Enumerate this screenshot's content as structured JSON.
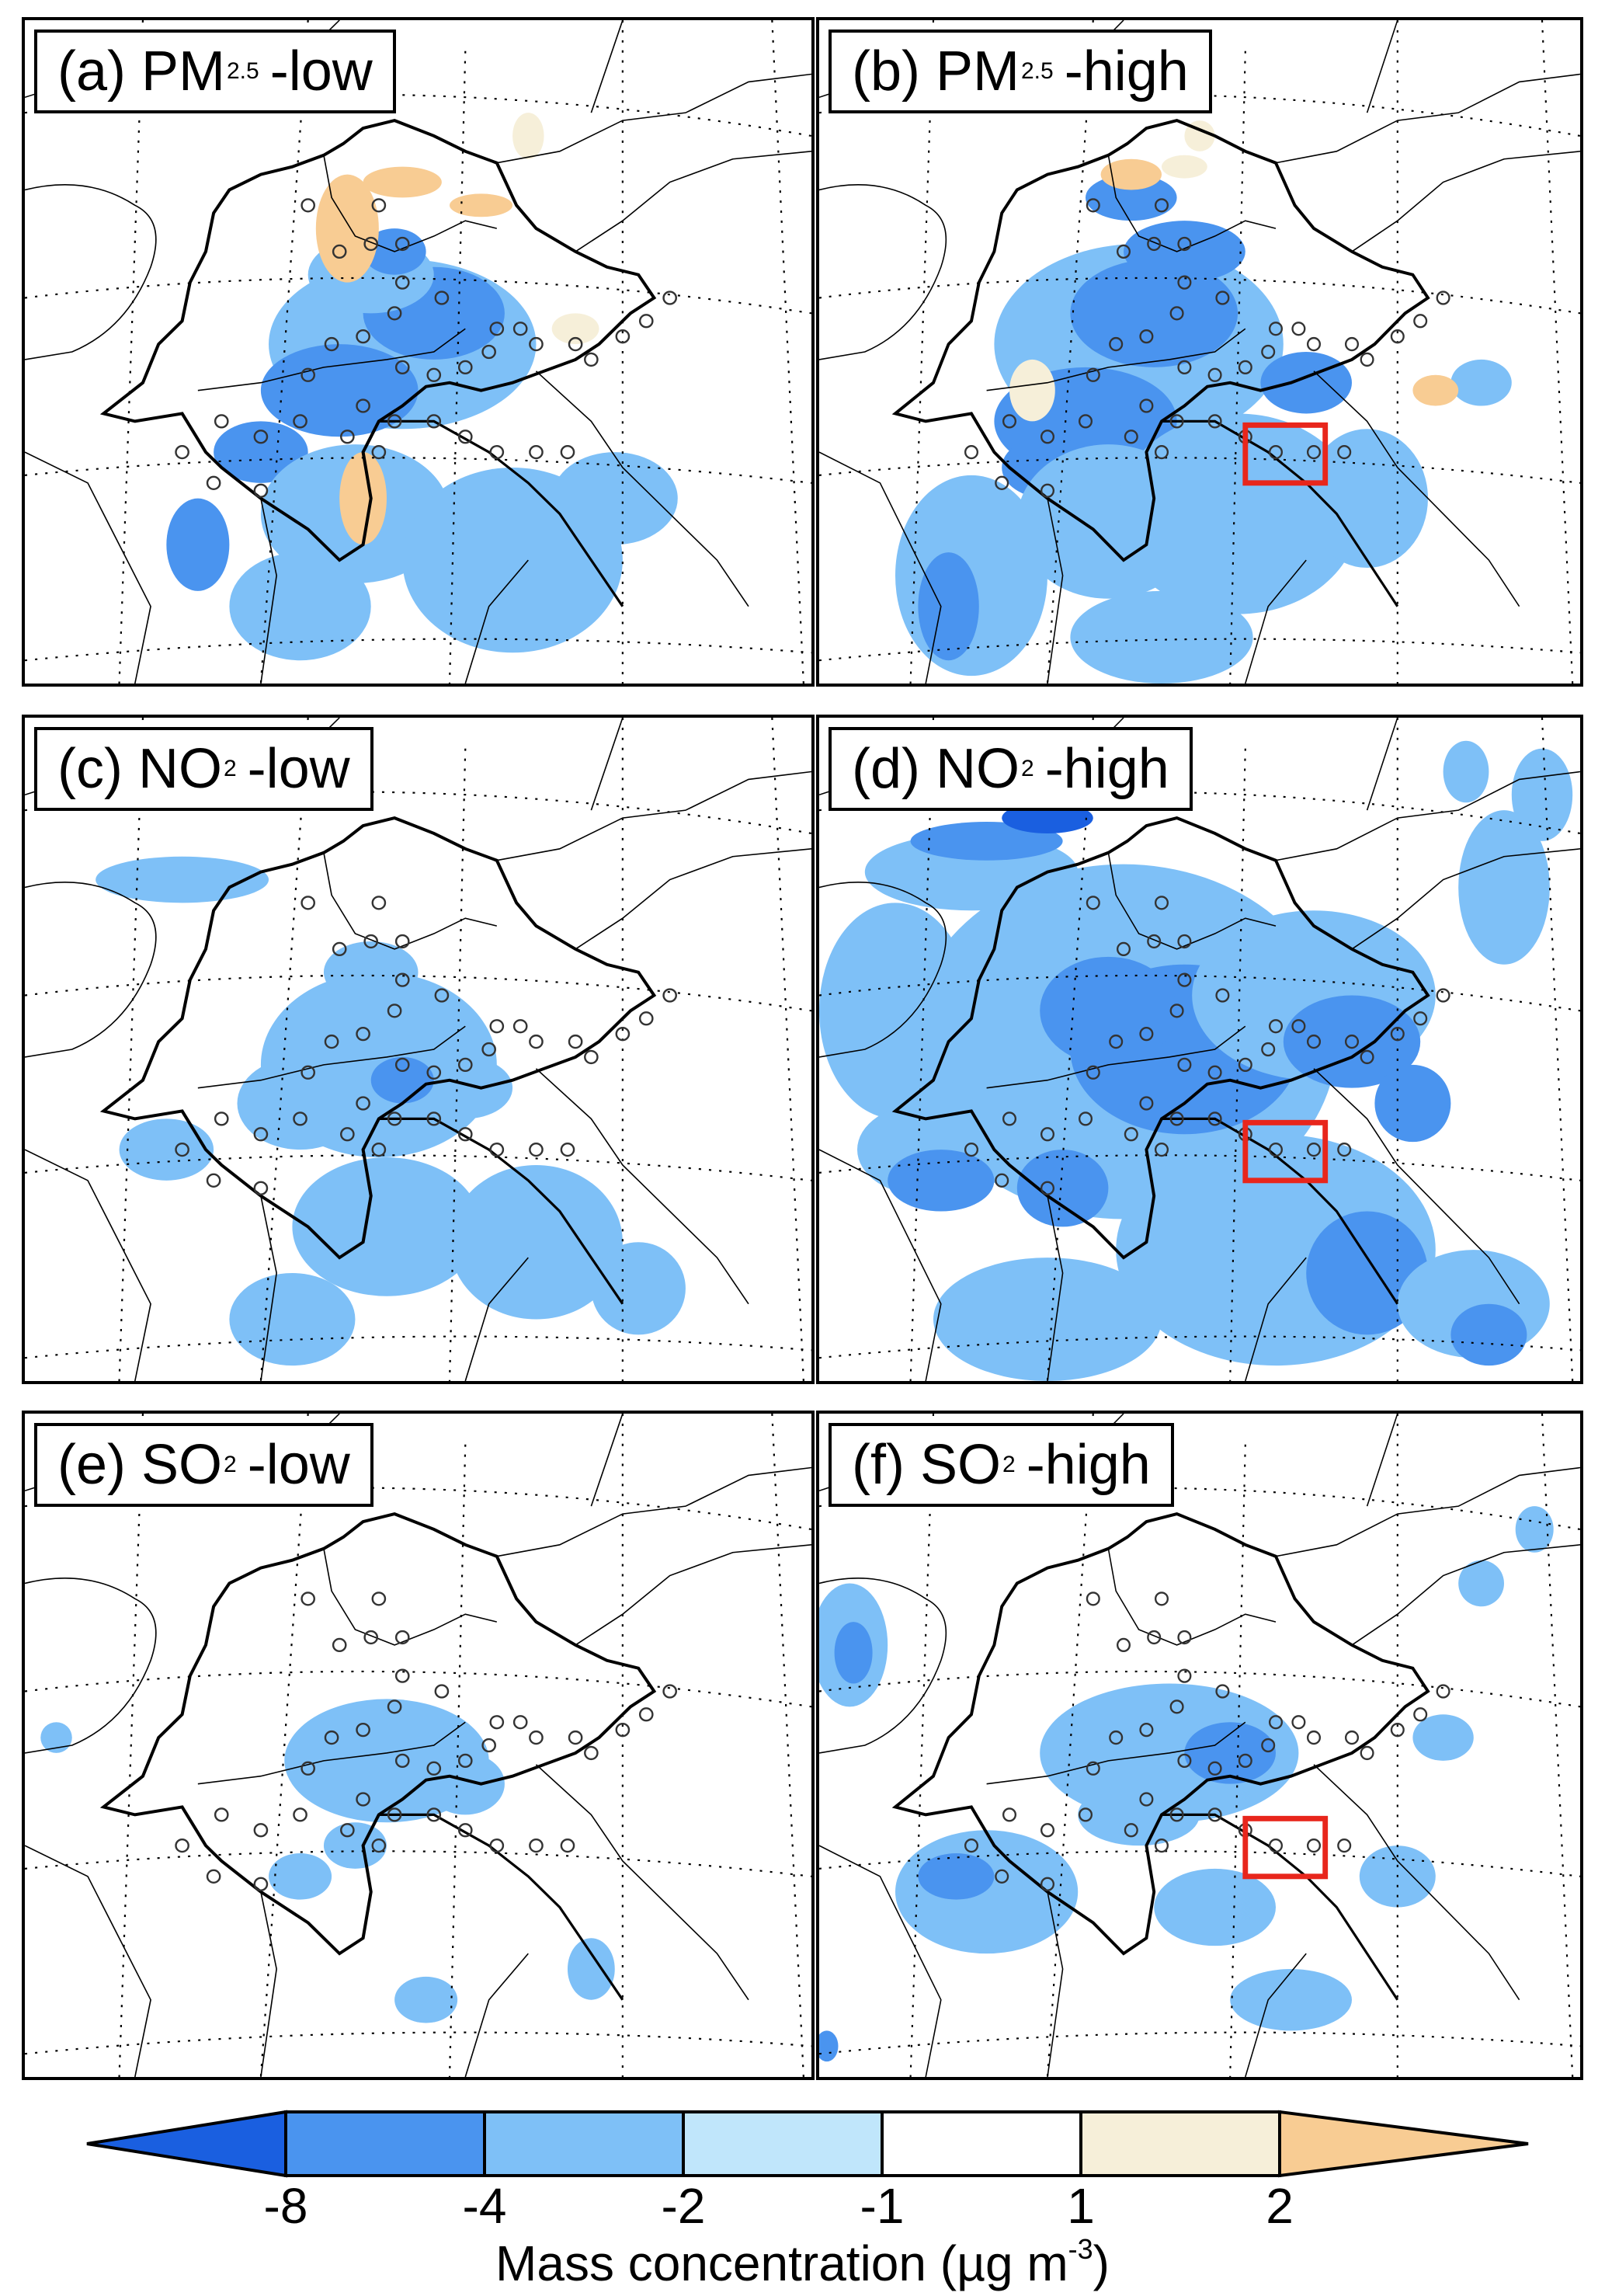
{
  "panels": [
    {
      "id": "a",
      "prefix": "(a) PM",
      "sub": "2.5",
      "suffix": "-low",
      "highlight": false,
      "pattern": "pm_low"
    },
    {
      "id": "b",
      "prefix": "(b) PM",
      "sub": "2.5",
      "suffix": "-high",
      "highlight": true,
      "pattern": "pm_high"
    },
    {
      "id": "c",
      "prefix": "(c) NO",
      "sub": "2",
      "suffix": "-low",
      "highlight": false,
      "pattern": "no2_low"
    },
    {
      "id": "d",
      "prefix": "(d) NO",
      "sub": "2",
      "suffix": "-high",
      "highlight": true,
      "pattern": "no2_high"
    },
    {
      "id": "e",
      "prefix": "(e) SO",
      "sub": "2",
      "suffix": "-low",
      "highlight": false,
      "pattern": "so2_low"
    },
    {
      "id": "f",
      "prefix": "(f) SO",
      "sub": "2",
      "suffix": "-high",
      "highlight": true,
      "pattern": "so2_high"
    }
  ],
  "colorbar": {
    "title": "Mass concentration (µg m",
    "title_sup": "-3",
    "title_close": ")",
    "ticks": [
      "-8",
      "-4",
      "-2",
      "-1",
      "1",
      "2"
    ],
    "colors": [
      "#1a5fe0",
      "#4a94ef",
      "#7ec0f7",
      "#c0e6fb",
      "#ffffff",
      "#f6efd9",
      "#f8cc93"
    ]
  },
  "highlight_color": "#e8261c",
  "station_color": "#333333"
}
